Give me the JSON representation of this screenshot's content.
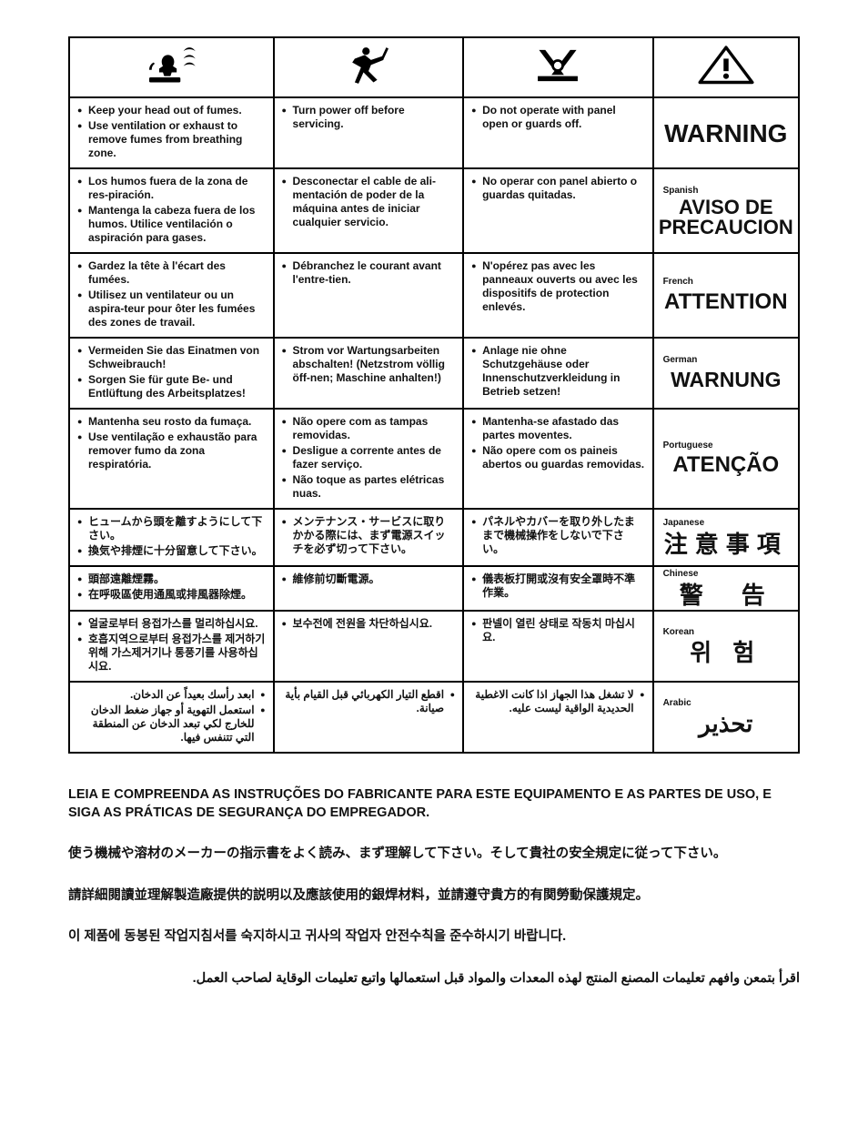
{
  "icons": [
    "fumes-icon",
    "service-icon",
    "panel-icon",
    "warning-triangle-icon"
  ],
  "rows": [
    {
      "lang_label": "",
      "col1": [
        "Keep your head out of fumes.",
        "Use ventilation or exhaust to remove fumes from breathing zone."
      ],
      "col2": [
        "Turn power off before servicing."
      ],
      "col3": [
        "Do not operate with panel open or guards off."
      ],
      "warn": "WARNING",
      "warn_class": "warn-en"
    },
    {
      "lang_label": "Spanish",
      "col1": [
        "Los humos fuera de la zona de res-piración.",
        "Mantenga la cabeza fuera de los humos. Utilice ventilación o aspiración para gases."
      ],
      "col2": [
        "Desconectar el cable de ali-mentación de poder de la máquina antes de iniciar cualquier servicio."
      ],
      "col3": [
        "No operar con panel abierto o guardas quitadas."
      ],
      "warn": "AVISO DE PRECAUCION",
      "warn_class": "warn-es"
    },
    {
      "lang_label": "French",
      "col1": [
        "Gardez la tête à l'écart des fumées.",
        "Utilisez un ventilateur ou un aspira-teur pour ôter les fumées des zones de travail."
      ],
      "col2": [
        "Débranchez le courant avant l'entre-tien."
      ],
      "col3": [
        "N'opérez pas avec les panneaux ouverts ou avec les dispositifs de protection enlevés."
      ],
      "warn": "ATTENTION",
      "warn_class": "warn-fr"
    },
    {
      "lang_label": "German",
      "col1": [
        "Vermeiden Sie das Einatmen von Schweibrauch!",
        "Sorgen Sie für gute Be- und Entlüftung des Arbeitsplatzes!"
      ],
      "col2": [
        "Strom vor Wartungsarbeiten abschalten! (Netzstrom völlig öff-nen; Maschine anhalten!)"
      ],
      "col3": [
        "Anlage nie ohne Schutzgehäuse oder Innenschutzverkleidung in Betrieb setzen!"
      ],
      "warn": "WARNUNG",
      "warn_class": "warn-de"
    },
    {
      "lang_label": "Portuguese",
      "col1": [
        "Mantenha seu rosto da fumaça.",
        "Use ventilação e exhaustão para remover fumo da zona respiratória."
      ],
      "col2": [
        "Não opere com as tampas removidas.",
        "Desligue a corrente antes de fazer serviço.",
        "Não toque as partes elétricas nuas."
      ],
      "col3": [
        "Mantenha-se afastado das partes moventes.",
        "Não opere com os paineis abertos ou guardas removidas."
      ],
      "warn": "ATENÇÃO",
      "warn_class": "warn-pt"
    },
    {
      "lang_label": "Japanese",
      "col1": [
        "ヒュームから頭を離すようにして下さい。",
        "換気や排煙に十分留意して下さい。"
      ],
      "col2": [
        "メンテナンス・サービスに取りかかる際には、まず電源スイッチを必ず切って下さい。"
      ],
      "col3": [
        "パネルやカバーを取り外したままで機械操作をしないで下さい。"
      ],
      "warn": "注意事項",
      "warn_class": "warn-cjk"
    },
    {
      "lang_label": "Chinese",
      "col1": [
        "頭部遠離煙霧。",
        "在呼吸區使用通風或排風器除煙。"
      ],
      "col2": [
        "維修前切斷電源。"
      ],
      "col3": [
        "儀表板打開或沒有安全罩時不準作業。"
      ],
      "warn": "警　告",
      "warn_class": "warn-cjk"
    },
    {
      "lang_label": "Korean",
      "col1": [
        "얼굴로부터 용접가스를 멀리하십시요.",
        "호흡지역으로부터 용접가스를 제거하기 위해 가스제거기나 통풍기를 사용하십시요."
      ],
      "col2": [
        "보수전에 전원을 차단하십시요."
      ],
      "col3": [
        "판넬이 열린 상태로 작동치 마십시요."
      ],
      "warn": "위 험",
      "warn_class": "warn-cjk"
    },
    {
      "lang_label": "Arabic",
      "rtl": true,
      "col1": [
        "ابعد رأسك بعيداً عن الدخان.",
        "استعمل التهوية أو جهاز ضغط الدخان للخارج لكي تبعد الدخان عن المنطقة التي تتنفس فيها."
      ],
      "col2": [
        "اقطع التيار الكهربائي قبل القيام بأية صيانة."
      ],
      "col3": [
        "لا تشغل هذا الجهاز اذا كانت الاغطية الحديدية الواقية ليست عليه."
      ],
      "warn": "تحذير",
      "warn_class": "warn-ar"
    }
  ],
  "footer": [
    {
      "text": "LEIA E COMPREENDA AS INSTRUÇÕES DO FABRICANTE PARA ESTE EQUIPAMENTO E AS PARTES DE USO, E SIGA AS PRÁTICAS DE SEGURANÇA DO EMPREGADOR.",
      "class": ""
    },
    {
      "text": "使う機械や溶材のメーカーの指示書をよく読み、まず理解して下さい。そして貴社の安全規定に従って下さい。",
      "class": ""
    },
    {
      "text": "請詳細閱讀並理解製造廠提供的説明以及應該使用的銀焊材料，並請遵守貴方的有関勞動保護規定。",
      "class": ""
    },
    {
      "text": "이 제품에 동봉된 작업지침서를 숙지하시고 귀사의 작업자 안전수칙을 준수하시기 바랍니다.",
      "class": ""
    },
    {
      "text": "اقرأ بتمعن وافهم تعليمات المصنع المنتج لهذه المعدات والمواد قبل استعمالها واتبع تعليمات الوقاية لصاحب العمل.",
      "class": "ar"
    }
  ],
  "colors": {
    "border": "#000000",
    "text": "#111111",
    "bg": "#ffffff"
  }
}
